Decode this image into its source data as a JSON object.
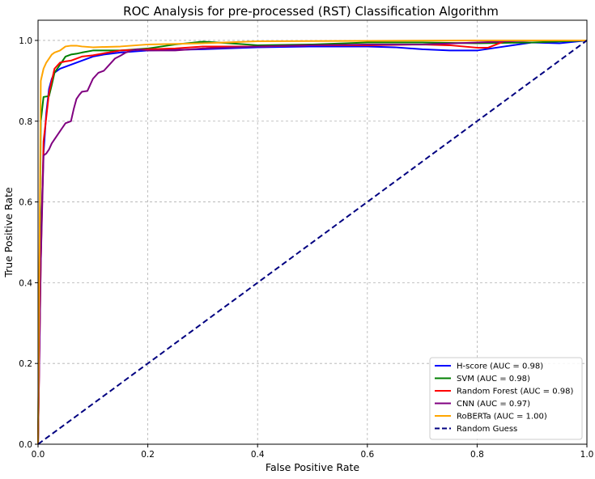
{
  "chart_data": {
    "type": "line",
    "title": "ROC Analysis for pre-processed (RST) Classification Algorithm",
    "xlabel": "False Positive Rate",
    "ylabel": "True Positive Rate",
    "xlim": [
      0.0,
      1.0
    ],
    "ylim": [
      0.0,
      1.05
    ],
    "xticks": [
      "0.0",
      "0.2",
      "0.4",
      "0.6",
      "0.8",
      "1.0"
    ],
    "yticks": [
      "0.0",
      "0.2",
      "0.4",
      "0.6",
      "0.8",
      "1.0"
    ],
    "grid": true,
    "legend_position": "bottom-right",
    "series": [
      {
        "name": "H-score (AUC = 0.98)",
        "color": "#0000ff",
        "style": "solid",
        "x": [
          0.0,
          0.005,
          0.01,
          0.015,
          0.02,
          0.025,
          0.03,
          0.04,
          0.05,
          0.06,
          0.07,
          0.08,
          0.1,
          0.12,
          0.15,
          0.2,
          0.3,
          0.4,
          0.5,
          0.6,
          0.65,
          0.7,
          0.75,
          0.8,
          0.85,
          0.9,
          0.95,
          1.0
        ],
        "y": [
          0.0,
          0.5,
          0.72,
          0.82,
          0.88,
          0.905,
          0.92,
          0.93,
          0.935,
          0.94,
          0.945,
          0.95,
          0.96,
          0.965,
          0.97,
          0.975,
          0.978,
          0.983,
          0.985,
          0.985,
          0.983,
          0.978,
          0.975,
          0.975,
          0.985,
          0.995,
          0.993,
          1.0
        ]
      },
      {
        "name": "SVM (AUC = 0.98)",
        "color": "#008000",
        "style": "solid",
        "x": [
          0.0,
          0.005,
          0.01,
          0.02,
          0.025,
          0.03,
          0.04,
          0.05,
          0.06,
          0.07,
          0.08,
          0.1,
          0.12,
          0.15,
          0.2,
          0.25,
          0.3,
          0.35,
          0.4,
          0.5,
          0.6,
          0.7,
          0.8,
          0.9,
          1.0
        ],
        "y": [
          0.0,
          0.8,
          0.86,
          0.862,
          0.89,
          0.92,
          0.94,
          0.96,
          0.965,
          0.967,
          0.97,
          0.975,
          0.975,
          0.975,
          0.98,
          0.99,
          0.997,
          0.993,
          0.988,
          0.99,
          0.995,
          0.995,
          0.993,
          0.995,
          1.0
        ]
      },
      {
        "name": "Random Forest (AUC = 0.98)",
        "color": "#ff0000",
        "style": "solid",
        "x": [
          0.0,
          0.005,
          0.01,
          0.02,
          0.03,
          0.04,
          0.05,
          0.06,
          0.07,
          0.08,
          0.1,
          0.12,
          0.15,
          0.2,
          0.25,
          0.3,
          0.4,
          0.5,
          0.6,
          0.7,
          0.75,
          0.8,
          0.82,
          0.85,
          0.9,
          1.0
        ],
        "y": [
          0.0,
          0.45,
          0.75,
          0.87,
          0.93,
          0.945,
          0.948,
          0.95,
          0.955,
          0.96,
          0.963,
          0.968,
          0.975,
          0.978,
          0.98,
          0.985,
          0.985,
          0.988,
          0.988,
          0.99,
          0.988,
          0.982,
          0.982,
          0.998,
          1.0,
          1.0
        ]
      },
      {
        "name": "CNN (AUC = 0.97)",
        "color": "#800080",
        "style": "solid",
        "x": [
          0.0,
          0.005,
          0.01,
          0.015,
          0.02,
          0.025,
          0.03,
          0.04,
          0.045,
          0.05,
          0.06,
          0.065,
          0.07,
          0.075,
          0.08,
          0.09,
          0.1,
          0.11,
          0.12,
          0.13,
          0.14,
          0.15,
          0.16,
          0.17,
          0.18,
          0.2,
          0.25,
          0.3,
          0.4,
          0.5,
          0.6,
          0.7,
          0.8,
          0.9,
          1.0
        ],
        "y": [
          0.0,
          0.45,
          0.715,
          0.72,
          0.73,
          0.745,
          0.755,
          0.775,
          0.785,
          0.795,
          0.8,
          0.83,
          0.855,
          0.865,
          0.873,
          0.875,
          0.905,
          0.92,
          0.925,
          0.94,
          0.955,
          0.962,
          0.97,
          0.975,
          0.978,
          0.975,
          0.975,
          0.98,
          0.985,
          0.988,
          0.99,
          0.99,
          0.995,
          1.0,
          1.0
        ]
      },
      {
        "name": "RoBERTa (AUC = 1.00)",
        "color": "#ffa500",
        "style": "solid",
        "x": [
          0.0,
          0.005,
          0.01,
          0.015,
          0.02,
          0.025,
          0.03,
          0.04,
          0.05,
          0.06,
          0.07,
          0.08,
          0.1,
          0.15,
          0.2,
          0.3,
          0.4,
          0.6,
          0.8,
          1.0
        ],
        "y": [
          0.0,
          0.9,
          0.93,
          0.945,
          0.955,
          0.965,
          0.97,
          0.975,
          0.985,
          0.987,
          0.987,
          0.985,
          0.983,
          0.985,
          0.99,
          0.993,
          0.998,
          0.999,
          1.0,
          1.0
        ]
      },
      {
        "name": "Random Guess",
        "color": "#000080",
        "style": "dashed",
        "x": [
          0.0,
          1.0
        ],
        "y": [
          0.0,
          1.0
        ]
      }
    ]
  }
}
